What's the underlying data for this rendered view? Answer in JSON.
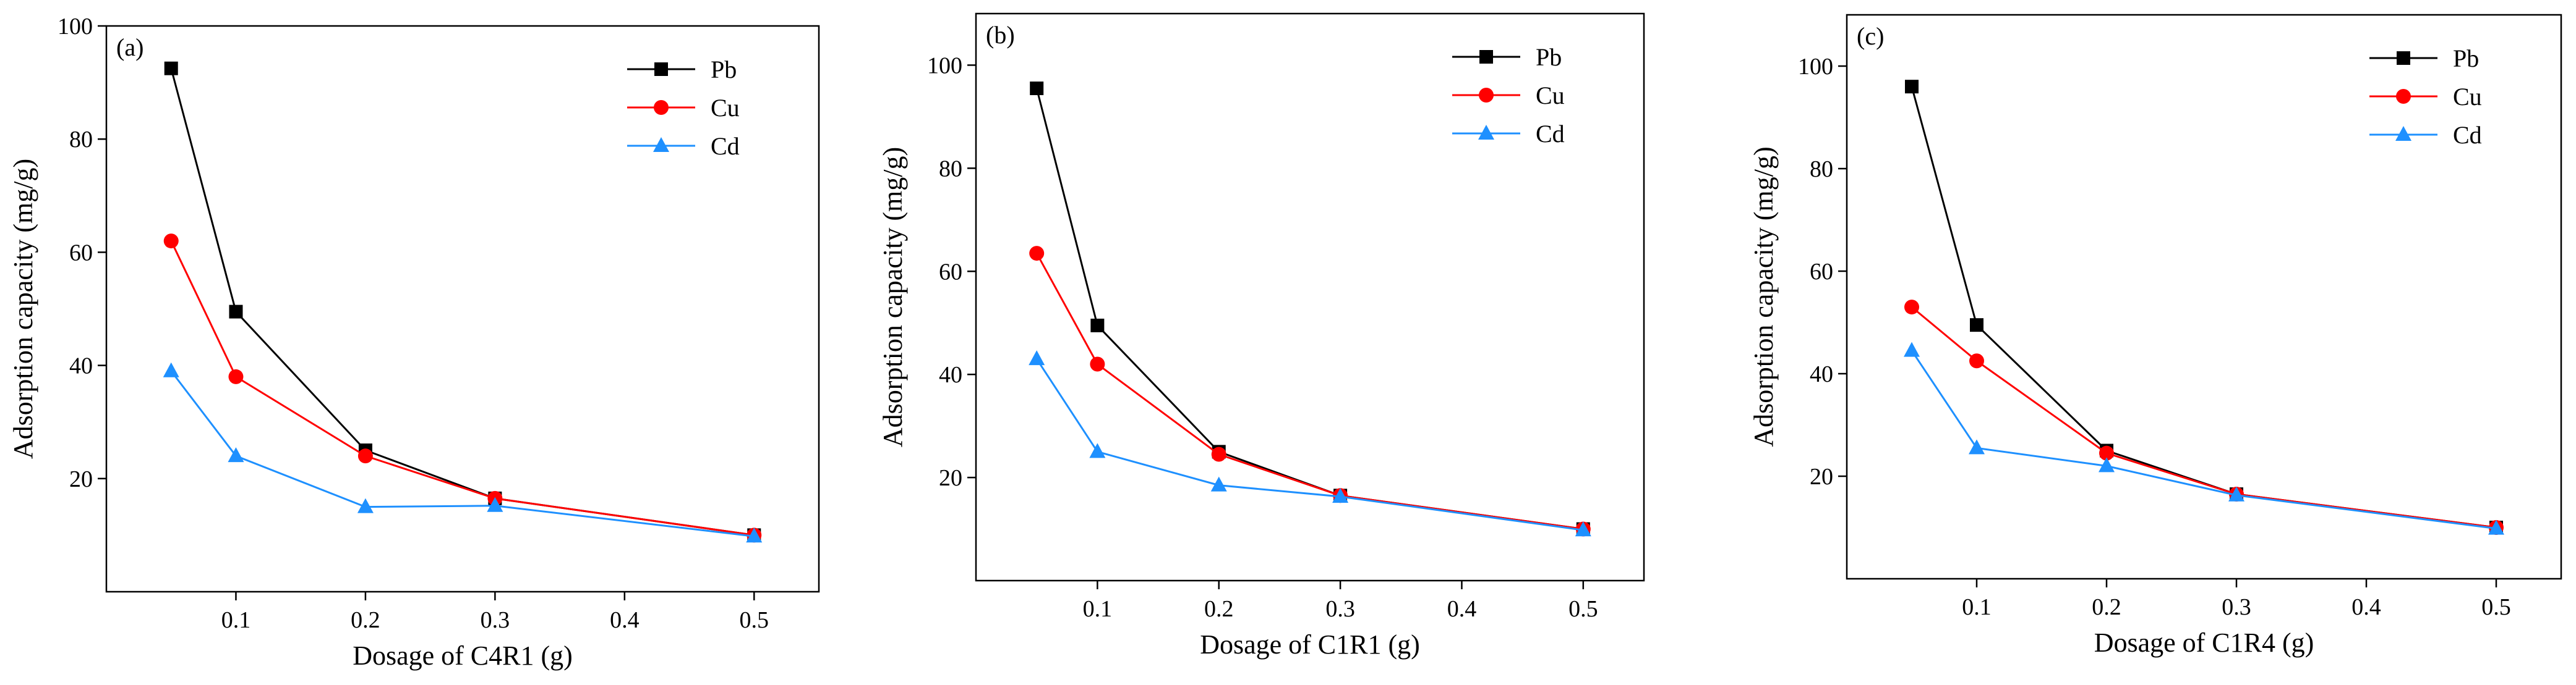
{
  "chart_data": [
    {
      "type": "line",
      "panel_label": "(a)",
      "xlabel": "Dosage of C4R1 (g)",
      "ylabel": "Adsorption capacity (mg/g)",
      "xlim": [
        0,
        0.55
      ],
      "ylim": [
        0,
        100
      ],
      "x_ticks": [
        0.1,
        0.2,
        0.3,
        0.4,
        0.5
      ],
      "y_ticks": [
        20,
        40,
        60,
        80,
        100
      ],
      "x_tick_labels": [
        "0.1",
        "0.2",
        "0.3",
        "0.4",
        "0.5"
      ],
      "y_tick_labels": [
        "20",
        "40",
        "60",
        "80",
        "100"
      ],
      "legend_position": "top-right",
      "x": [
        0.05,
        0.1,
        0.2,
        0.3,
        0.5
      ],
      "series": [
        {
          "name": "Pb",
          "color": "#000000",
          "marker": "square",
          "values": [
            92.5,
            49.5,
            25.0,
            16.5,
            10.0
          ]
        },
        {
          "name": "Cu",
          "color": "#ff0000",
          "marker": "circle",
          "values": [
            62.0,
            38.0,
            24.0,
            16.5,
            10.0
          ]
        },
        {
          "name": "Cd",
          "color": "#1e90ff",
          "marker": "triangle",
          "values": [
            39.0,
            24.0,
            15.0,
            15.2,
            9.8
          ]
        }
      ]
    },
    {
      "type": "line",
      "panel_label": "(b)",
      "xlabel": "Dosage of C1R1 (g)",
      "ylabel": "Adsorption capacity (mg/g)",
      "xlim": [
        0,
        0.55
      ],
      "ylim": [
        0,
        110
      ],
      "x_ticks": [
        0.1,
        0.2,
        0.3,
        0.4,
        0.5
      ],
      "y_ticks": [
        20,
        40,
        60,
        80,
        100
      ],
      "x_tick_labels": [
        "0.1",
        "0.2",
        "0.3",
        "0.4",
        "0.5"
      ],
      "y_tick_labels": [
        "20",
        "40",
        "60",
        "80",
        "100"
      ],
      "legend_position": "top-right",
      "x": [
        0.05,
        0.1,
        0.2,
        0.3,
        0.5
      ],
      "series": [
        {
          "name": "Pb",
          "color": "#000000",
          "marker": "square",
          "values": [
            95.5,
            49.5,
            25.0,
            16.5,
            10.0
          ]
        },
        {
          "name": "Cu",
          "color": "#ff0000",
          "marker": "circle",
          "values": [
            63.5,
            42.0,
            24.5,
            16.5,
            10.0
          ]
        },
        {
          "name": "Cd",
          "color": "#1e90ff",
          "marker": "triangle",
          "values": [
            43.0,
            25.0,
            18.5,
            16.3,
            9.8
          ]
        }
      ]
    },
    {
      "type": "line",
      "panel_label": "(c)",
      "xlabel": "Dosage of C1R4 (g)",
      "ylabel": "Adsorption capacity (mg/g)",
      "xlim": [
        0,
        0.55
      ],
      "ylim": [
        0,
        110
      ],
      "x_ticks": [
        0.1,
        0.2,
        0.3,
        0.4,
        0.5
      ],
      "y_ticks": [
        20,
        40,
        60,
        80,
        100
      ],
      "x_tick_labels": [
        "0.1",
        "0.2",
        "0.3",
        "0.4",
        "0.5"
      ],
      "y_tick_labels": [
        "20",
        "40",
        "60",
        "80",
        "100"
      ],
      "legend_position": "top-right",
      "x": [
        0.05,
        0.1,
        0.2,
        0.3,
        0.5
      ],
      "series": [
        {
          "name": "Pb",
          "color": "#000000",
          "marker": "square",
          "values": [
            96.0,
            49.5,
            25.0,
            16.5,
            10.0
          ]
        },
        {
          "name": "Cu",
          "color": "#ff0000",
          "marker": "circle",
          "values": [
            53.0,
            42.5,
            24.5,
            16.5,
            10.0
          ]
        },
        {
          "name": "Cd",
          "color": "#1e90ff",
          "marker": "triangle",
          "values": [
            44.5,
            25.5,
            22.0,
            16.3,
            9.8
          ]
        }
      ]
    }
  ]
}
